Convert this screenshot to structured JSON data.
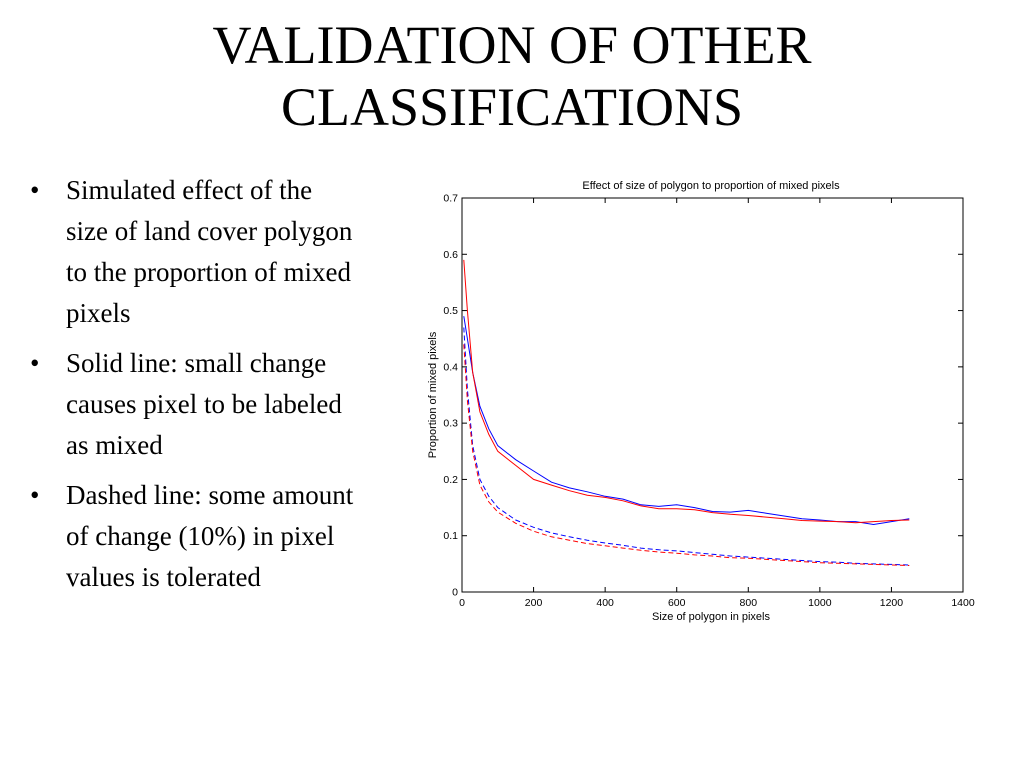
{
  "slide": {
    "title_lines": [
      "VALIDATION OF OTHER",
      "CLASSIFICATIONS"
    ],
    "bullet_glyph": "•",
    "bullets": [
      "Simulated effect of the size of land cover polygon to the proportion of mixed pixels",
      "Solid line: small change causes pixel to be labeled as mixed",
      "Dashed line: some amount of change (10%) in pixel values is tolerated"
    ]
  },
  "chart_data": {
    "type": "line",
    "title": "Effect of size of polygon to proportion of mixed pixels",
    "xlabel": "Size of polygon in pixels",
    "ylabel": "Proportion of mixed pixels",
    "xlim": [
      0,
      1400
    ],
    "ylim": [
      0,
      0.7
    ],
    "xticks": [
      0,
      200,
      400,
      600,
      800,
      1000,
      1200,
      1400
    ],
    "yticks": [
      0,
      0.1,
      0.2,
      0.3,
      0.4,
      0.5,
      0.6,
      0.7
    ],
    "ytick_labels": [
      "0",
      "0.1",
      "0.2",
      "0.3",
      "0.4",
      "0.5",
      "0.6",
      "0.7"
    ],
    "grid": false,
    "series": [
      {
        "color": "#0000ff",
        "style": "solid",
        "x": [
          5,
          15,
          30,
          50,
          75,
          100,
          150,
          200,
          250,
          300,
          350,
          400,
          450,
          500,
          550,
          600,
          650,
          700,
          750,
          800,
          850,
          900,
          950,
          1000,
          1050,
          1100,
          1150,
          1200,
          1250
        ],
        "y": [
          0.49,
          0.45,
          0.39,
          0.33,
          0.29,
          0.26,
          0.235,
          0.215,
          0.195,
          0.185,
          0.178,
          0.17,
          0.165,
          0.155,
          0.152,
          0.155,
          0.15,
          0.143,
          0.142,
          0.145,
          0.14,
          0.135,
          0.13,
          0.128,
          0.125,
          0.125,
          0.12,
          0.125,
          0.13
        ]
      },
      {
        "color": "#ff0000",
        "style": "solid",
        "x": [
          5,
          15,
          30,
          50,
          75,
          100,
          150,
          200,
          250,
          300,
          350,
          400,
          450,
          500,
          550,
          600,
          650,
          700,
          750,
          800,
          850,
          900,
          950,
          1000,
          1050,
          1100,
          1150,
          1200,
          1250
        ],
        "y": [
          0.59,
          0.5,
          0.39,
          0.32,
          0.28,
          0.25,
          0.225,
          0.2,
          0.19,
          0.18,
          0.172,
          0.168,
          0.162,
          0.153,
          0.148,
          0.148,
          0.146,
          0.141,
          0.138,
          0.136,
          0.133,
          0.13,
          0.127,
          0.126,
          0.125,
          0.123,
          0.125,
          0.127,
          0.128
        ]
      },
      {
        "color": "#0000ff",
        "style": "dashed",
        "x": [
          5,
          15,
          30,
          50,
          75,
          100,
          150,
          200,
          250,
          300,
          350,
          400,
          450,
          500,
          550,
          600,
          650,
          700,
          750,
          800,
          850,
          900,
          950,
          1000,
          1050,
          1100,
          1150,
          1200,
          1250
        ],
        "y": [
          0.47,
          0.36,
          0.26,
          0.2,
          0.17,
          0.15,
          0.128,
          0.115,
          0.105,
          0.098,
          0.092,
          0.087,
          0.083,
          0.078,
          0.075,
          0.073,
          0.07,
          0.067,
          0.064,
          0.062,
          0.06,
          0.058,
          0.056,
          0.054,
          0.053,
          0.051,
          0.05,
          0.049,
          0.048
        ]
      },
      {
        "color": "#ff0000",
        "style": "dashed",
        "x": [
          5,
          15,
          30,
          50,
          75,
          100,
          150,
          200,
          250,
          300,
          350,
          400,
          450,
          500,
          550,
          600,
          650,
          700,
          750,
          800,
          850,
          900,
          950,
          1000,
          1050,
          1100,
          1150,
          1200,
          1250
        ],
        "y": [
          0.44,
          0.34,
          0.25,
          0.19,
          0.16,
          0.142,
          0.122,
          0.108,
          0.098,
          0.092,
          0.086,
          0.082,
          0.078,
          0.074,
          0.071,
          0.069,
          0.066,
          0.064,
          0.061,
          0.06,
          0.058,
          0.056,
          0.054,
          0.052,
          0.051,
          0.05,
          0.049,
          0.048,
          0.047
        ]
      }
    ]
  }
}
